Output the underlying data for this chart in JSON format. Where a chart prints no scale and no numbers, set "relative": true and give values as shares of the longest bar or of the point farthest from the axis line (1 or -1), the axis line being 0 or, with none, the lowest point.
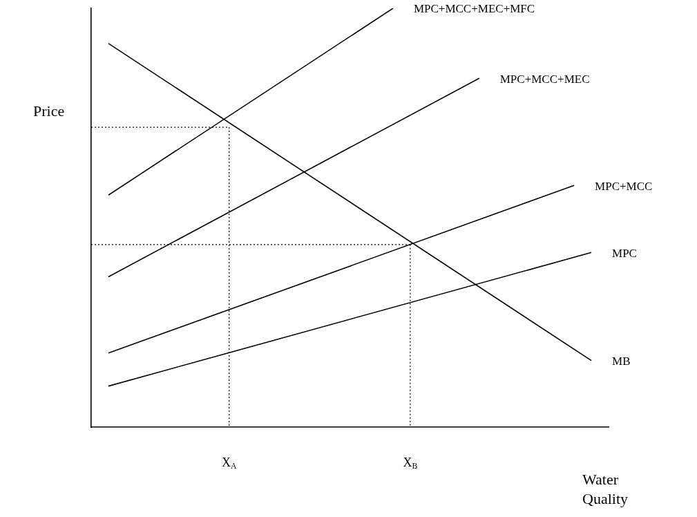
{
  "chart_data": {
    "type": "line",
    "relative": true,
    "ylabel": "Price",
    "xlabel": "Water Quality",
    "marker": "none",
    "categories": [
      null,
      null,
      null,
      null,
      null,
      null,
      null,
      null,
      null,
      null,
      null,
      null,
      null,
      null,
      null,
      null,
      "X$_{A}$",
      null,
      null,
      null,
      null,
      null,
      null,
      null,
      null,
      null,
      null,
      null,
      null,
      null,
      null,
      null,
      null,
      null,
      null,
      null,
      null,
      "X$_{B}$",
      null,
      null,
      null,
      null,
      null,
      null,
      null,
      null,
      null,
      null,
      null,
      null,
      null,
      null,
      null,
      null,
      null,
      null,
      null,
      null,
      null,
      null,
      null
    ],
    "series": [
      {
        "name": "MPC+MCC+MEC+MFC",
        "color": "#000000",
        "values": [
          null,
          null,
          0.554,
          null,
          null,
          null,
          null,
          null,
          null,
          null,
          null,
          null,
          null,
          null,
          null,
          null,
          null,
          null,
          null,
          null,
          null,
          null,
          null,
          null,
          null,
          null,
          null,
          null,
          null,
          null,
          null,
          null,
          null,
          null,
          null,
          1.0,
          null,
          null,
          null,
          null,
          null,
          null,
          null,
          null,
          null,
          null,
          null,
          null,
          null,
          null,
          null,
          null,
          null,
          null,
          null,
          null,
          null,
          null,
          null,
          null,
          null
        ]
      },
      {
        "name": "MPC+MCC+MEC",
        "color": "#000000",
        "values": [
          null,
          null,
          0.359,
          null,
          null,
          null,
          null,
          null,
          null,
          null,
          null,
          null,
          null,
          null,
          null,
          null,
          null,
          null,
          null,
          null,
          null,
          null,
          null,
          null,
          null,
          null,
          null,
          null,
          null,
          null,
          null,
          null,
          null,
          null,
          null,
          null,
          null,
          null,
          null,
          null,
          null,
          null,
          null,
          null,
          null,
          0.833,
          null,
          null,
          null,
          null,
          null,
          null,
          null,
          null,
          null,
          null,
          null,
          null,
          null,
          null,
          null
        ]
      },
      {
        "name": "MPC+MCC",
        "color": "#000000",
        "values": [
          null,
          null,
          0.177,
          null,
          null,
          null,
          null,
          null,
          null,
          null,
          null,
          null,
          null,
          null,
          null,
          null,
          null,
          null,
          null,
          null,
          null,
          null,
          null,
          null,
          null,
          null,
          null,
          null,
          null,
          null,
          null,
          null,
          null,
          null,
          null,
          null,
          null,
          null,
          null,
          null,
          null,
          null,
          null,
          null,
          null,
          null,
          null,
          null,
          null,
          null,
          null,
          null,
          null,
          null,
          null,
          null,
          0.577,
          null,
          null,
          null,
          null
        ]
      },
      {
        "name": "MPC",
        "color": "#000000",
        "values": [
          null,
          null,
          0.098,
          null,
          null,
          null,
          null,
          null,
          null,
          null,
          null,
          null,
          null,
          null,
          null,
          null,
          null,
          null,
          null,
          null,
          null,
          null,
          null,
          null,
          null,
          null,
          null,
          null,
          null,
          null,
          null,
          null,
          null,
          null,
          null,
          null,
          null,
          null,
          null,
          null,
          null,
          null,
          null,
          null,
          null,
          null,
          null,
          null,
          null,
          null,
          null,
          null,
          null,
          null,
          null,
          null,
          null,
          null,
          0.417,
          null,
          null
        ]
      },
      {
        "name": "MB",
        "color": "#000000",
        "values": [
          null,
          null,
          0.916,
          null,
          null,
          null,
          null,
          null,
          null,
          null,
          null,
          null,
          null,
          null,
          null,
          null,
          null,
          null,
          null,
          null,
          null,
          null,
          null,
          null,
          null,
          null,
          null,
          null,
          null,
          null,
          null,
          null,
          null,
          null,
          null,
          null,
          null,
          null,
          null,
          null,
          null,
          null,
          null,
          null,
          null,
          null,
          null,
          null,
          null,
          null,
          null,
          null,
          null,
          null,
          null,
          null,
          null,
          null,
          0.159,
          null,
          null
        ]
      },
      {
        "color": "#000000",
        "line_style": "dotted",
        "values": [
          0.716,
          null,
          null,
          null,
          null,
          null,
          null,
          null,
          null,
          null,
          null,
          null,
          null,
          null,
          null,
          null,
          0.716,
          null,
          null,
          null,
          null,
          null,
          null,
          null,
          null,
          null,
          null,
          null,
          null,
          null,
          null,
          null,
          null,
          null,
          null,
          null,
          null,
          null,
          null,
          null,
          null,
          null,
          null,
          null,
          null,
          null,
          null,
          null,
          null,
          null,
          null,
          null,
          null,
          null,
          null,
          null,
          null,
          null,
          null,
          null,
          null
        ]
      },
      {
        "color": "#000000",
        "line_style": "dotted",
        "x": [
          "X$_{A}$",
          "X$_{A}$"
        ],
        "values": [
          0.716,
          0
        ]
      },
      {
        "color": "#000000",
        "line_style": "dotted",
        "values": [
          0.436,
          null,
          null,
          null,
          null,
          null,
          null,
          null,
          null,
          null,
          null,
          null,
          null,
          null,
          null,
          null,
          null,
          null,
          null,
          null,
          null,
          null,
          null,
          null,
          null,
          null,
          null,
          null,
          null,
          null,
          null,
          null,
          null,
          null,
          null,
          null,
          null,
          0.436,
          null,
          null,
          null,
          null,
          null,
          null,
          null,
          null,
          null,
          null,
          null,
          null,
          null,
          null,
          null,
          null,
          null,
          null,
          null,
          null,
          null,
          null,
          null
        ]
      },
      {
        "color": "#000000",
        "line_style": "dotted",
        "x": [
          "X$_{B}$",
          "X$_{B}$"
        ],
        "values": [
          0.436,
          0
        ]
      }
    ]
  }
}
